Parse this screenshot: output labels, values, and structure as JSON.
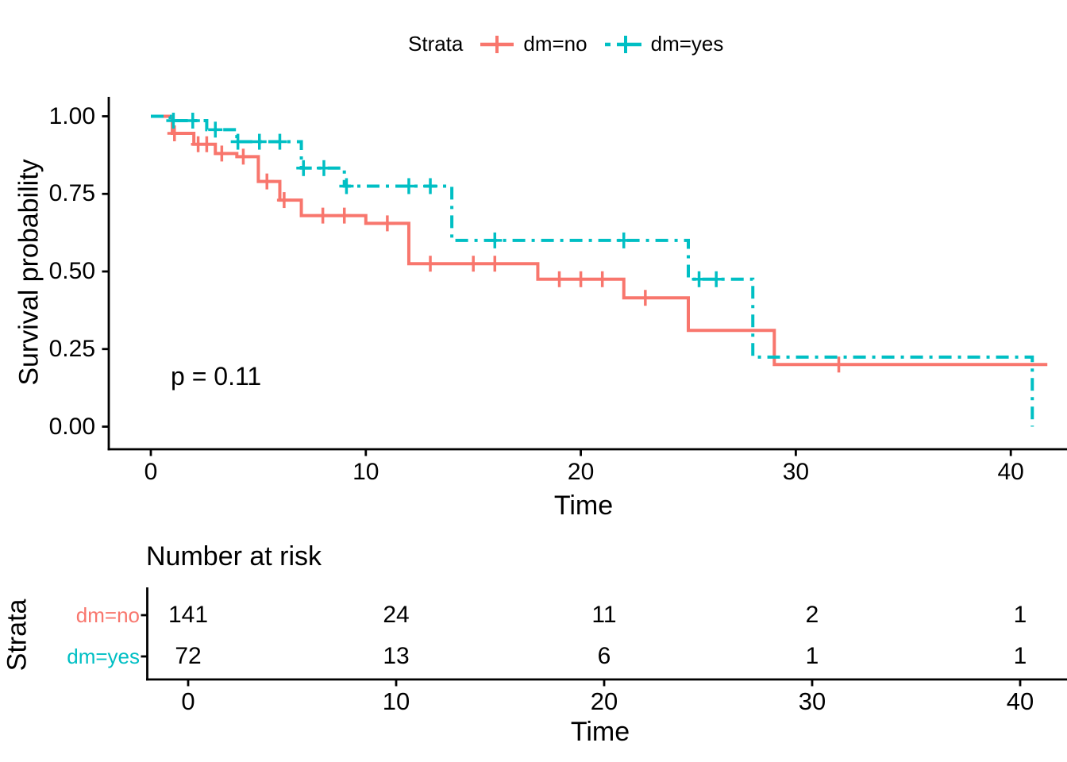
{
  "colors": {
    "dm_no": "#F8766D",
    "dm_yes": "#00BFC4",
    "axis": "#000000",
    "background": "#FFFFFF"
  },
  "legend": {
    "title": "Strata",
    "items": [
      {
        "label": "dm=no"
      },
      {
        "label": "dm=yes"
      }
    ]
  },
  "main_plot": {
    "ylabel": "Survival probability",
    "xlabel": "Time",
    "p_value": "p = 0.11",
    "y_tick_labels": [
      "0.00",
      "0.25",
      "0.50",
      "0.75",
      "1.00"
    ]
  },
  "risk_table": {
    "title": "Number at risk",
    "ylabel": "Strata",
    "xlabel": "Time",
    "x_ticks": [
      0,
      10,
      20,
      30,
      40
    ],
    "rows": [
      {
        "label": "dm=no",
        "color": "#F8766D",
        "values": [
          "141",
          "24",
          "11",
          "2",
          "1"
        ]
      },
      {
        "label": "dm=yes",
        "color": "#00BFC4",
        "values": [
          "72",
          "13",
          "6",
          "1",
          "1"
        ]
      }
    ]
  },
  "chart_data": {
    "type": "line",
    "subtype": "kaplan_meier_step_plot",
    "title": "",
    "xlabel": "Time",
    "ylabel": "Survival probability",
    "xlim": [
      0,
      42
    ],
    "ylim": [
      0,
      1
    ],
    "x_ticks": [
      0,
      10,
      20,
      30,
      40
    ],
    "y_ticks": [
      0,
      0.25,
      0.5,
      0.75,
      1.0
    ],
    "grid": false,
    "legend_title": "Strata",
    "legend_position": "top",
    "annotations": [
      {
        "text": "p = 0.11",
        "x": 1,
        "y": 0.2
      }
    ],
    "series": [
      {
        "name": "dm=no",
        "color": "#F8766D",
        "linetype": "solid",
        "steps": [
          [
            0,
            1.0
          ],
          [
            1,
            0.945
          ],
          [
            2,
            0.91
          ],
          [
            3,
            0.88
          ],
          [
            4,
            0.87
          ],
          [
            5,
            0.79
          ],
          [
            6,
            0.73
          ],
          [
            7,
            0.68
          ],
          [
            10,
            0.655
          ],
          [
            12,
            0.525
          ],
          [
            18,
            0.475
          ],
          [
            22,
            0.415
          ],
          [
            25,
            0.31
          ],
          [
            29,
            0.2
          ]
        ],
        "end": {
          "x": 41.7
        },
        "censor_marks": [
          [
            1.1,
            0.945
          ],
          [
            2.2,
            0.91
          ],
          [
            2.6,
            0.91
          ],
          [
            3.3,
            0.88
          ],
          [
            4.3,
            0.87
          ],
          [
            5.4,
            0.79
          ],
          [
            6.2,
            0.73
          ],
          [
            8,
            0.68
          ],
          [
            9,
            0.68
          ],
          [
            11,
            0.655
          ],
          [
            13,
            0.525
          ],
          [
            15,
            0.525
          ],
          [
            16,
            0.525
          ],
          [
            19,
            0.475
          ],
          [
            20,
            0.475
          ],
          [
            21,
            0.475
          ],
          [
            23,
            0.415
          ],
          [
            32,
            0.2
          ]
        ]
      },
      {
        "name": "dm=yes",
        "color": "#00BFC4",
        "linetype": "dotdash",
        "steps": [
          [
            0,
            1.0
          ],
          [
            0.9,
            0.986
          ],
          [
            2.6,
            0.957
          ],
          [
            4,
            0.918
          ],
          [
            7,
            0.833
          ],
          [
            9,
            0.775
          ],
          [
            14,
            0.6
          ],
          [
            25,
            0.475
          ],
          [
            28,
            0.224
          ]
        ],
        "end": {
          "x": 41,
          "drop_to": 0
        },
        "censor_marks": [
          [
            1.05,
            0.986
          ],
          [
            1.95,
            0.986
          ],
          [
            3,
            0.957
          ],
          [
            4.05,
            0.918
          ],
          [
            5.05,
            0.918
          ],
          [
            6,
            0.918
          ],
          [
            7.1,
            0.833
          ],
          [
            8.05,
            0.833
          ],
          [
            9.1,
            0.775
          ],
          [
            12,
            0.775
          ],
          [
            13,
            0.775
          ],
          [
            16,
            0.6
          ],
          [
            22,
            0.6
          ],
          [
            25.5,
            0.475
          ],
          [
            26.3,
            0.475
          ]
        ]
      }
    ],
    "risk_table": {
      "title": "Number at risk",
      "times": [
        0,
        10,
        20,
        30,
        40
      ],
      "rows": [
        {
          "name": "dm=no",
          "counts": [
            141,
            24,
            11,
            2,
            1
          ]
        },
        {
          "name": "dm=yes",
          "counts": [
            72,
            13,
            6,
            1,
            1
          ]
        }
      ]
    }
  }
}
